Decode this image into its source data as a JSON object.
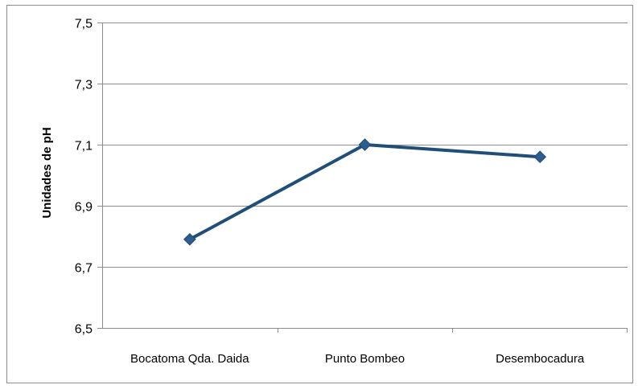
{
  "chart_data": {
    "type": "line",
    "title": "",
    "xlabel": "",
    "ylabel": "Unidades de pH",
    "categories": [
      "Bocatoma Qda. Daida",
      "Punto Bombeo",
      "Desembocadura"
    ],
    "series": [
      {
        "values": [
          6.79,
          7.1,
          7.06
        ]
      }
    ],
    "ylim": [
      6.5,
      7.5
    ],
    "yticks": [
      6.5,
      6.7,
      6.9,
      7.1,
      7.3,
      7.5
    ],
    "ytick_labels": [
      "6,5",
      "6,7",
      "6,9",
      "7,1",
      "7,3",
      "7,5"
    ],
    "grid": true,
    "legend": "none",
    "marker": "diamond",
    "line_color": "#1F4E79",
    "marker_color": "#2E5E8E",
    "grid_color": "#8C8C8C"
  }
}
